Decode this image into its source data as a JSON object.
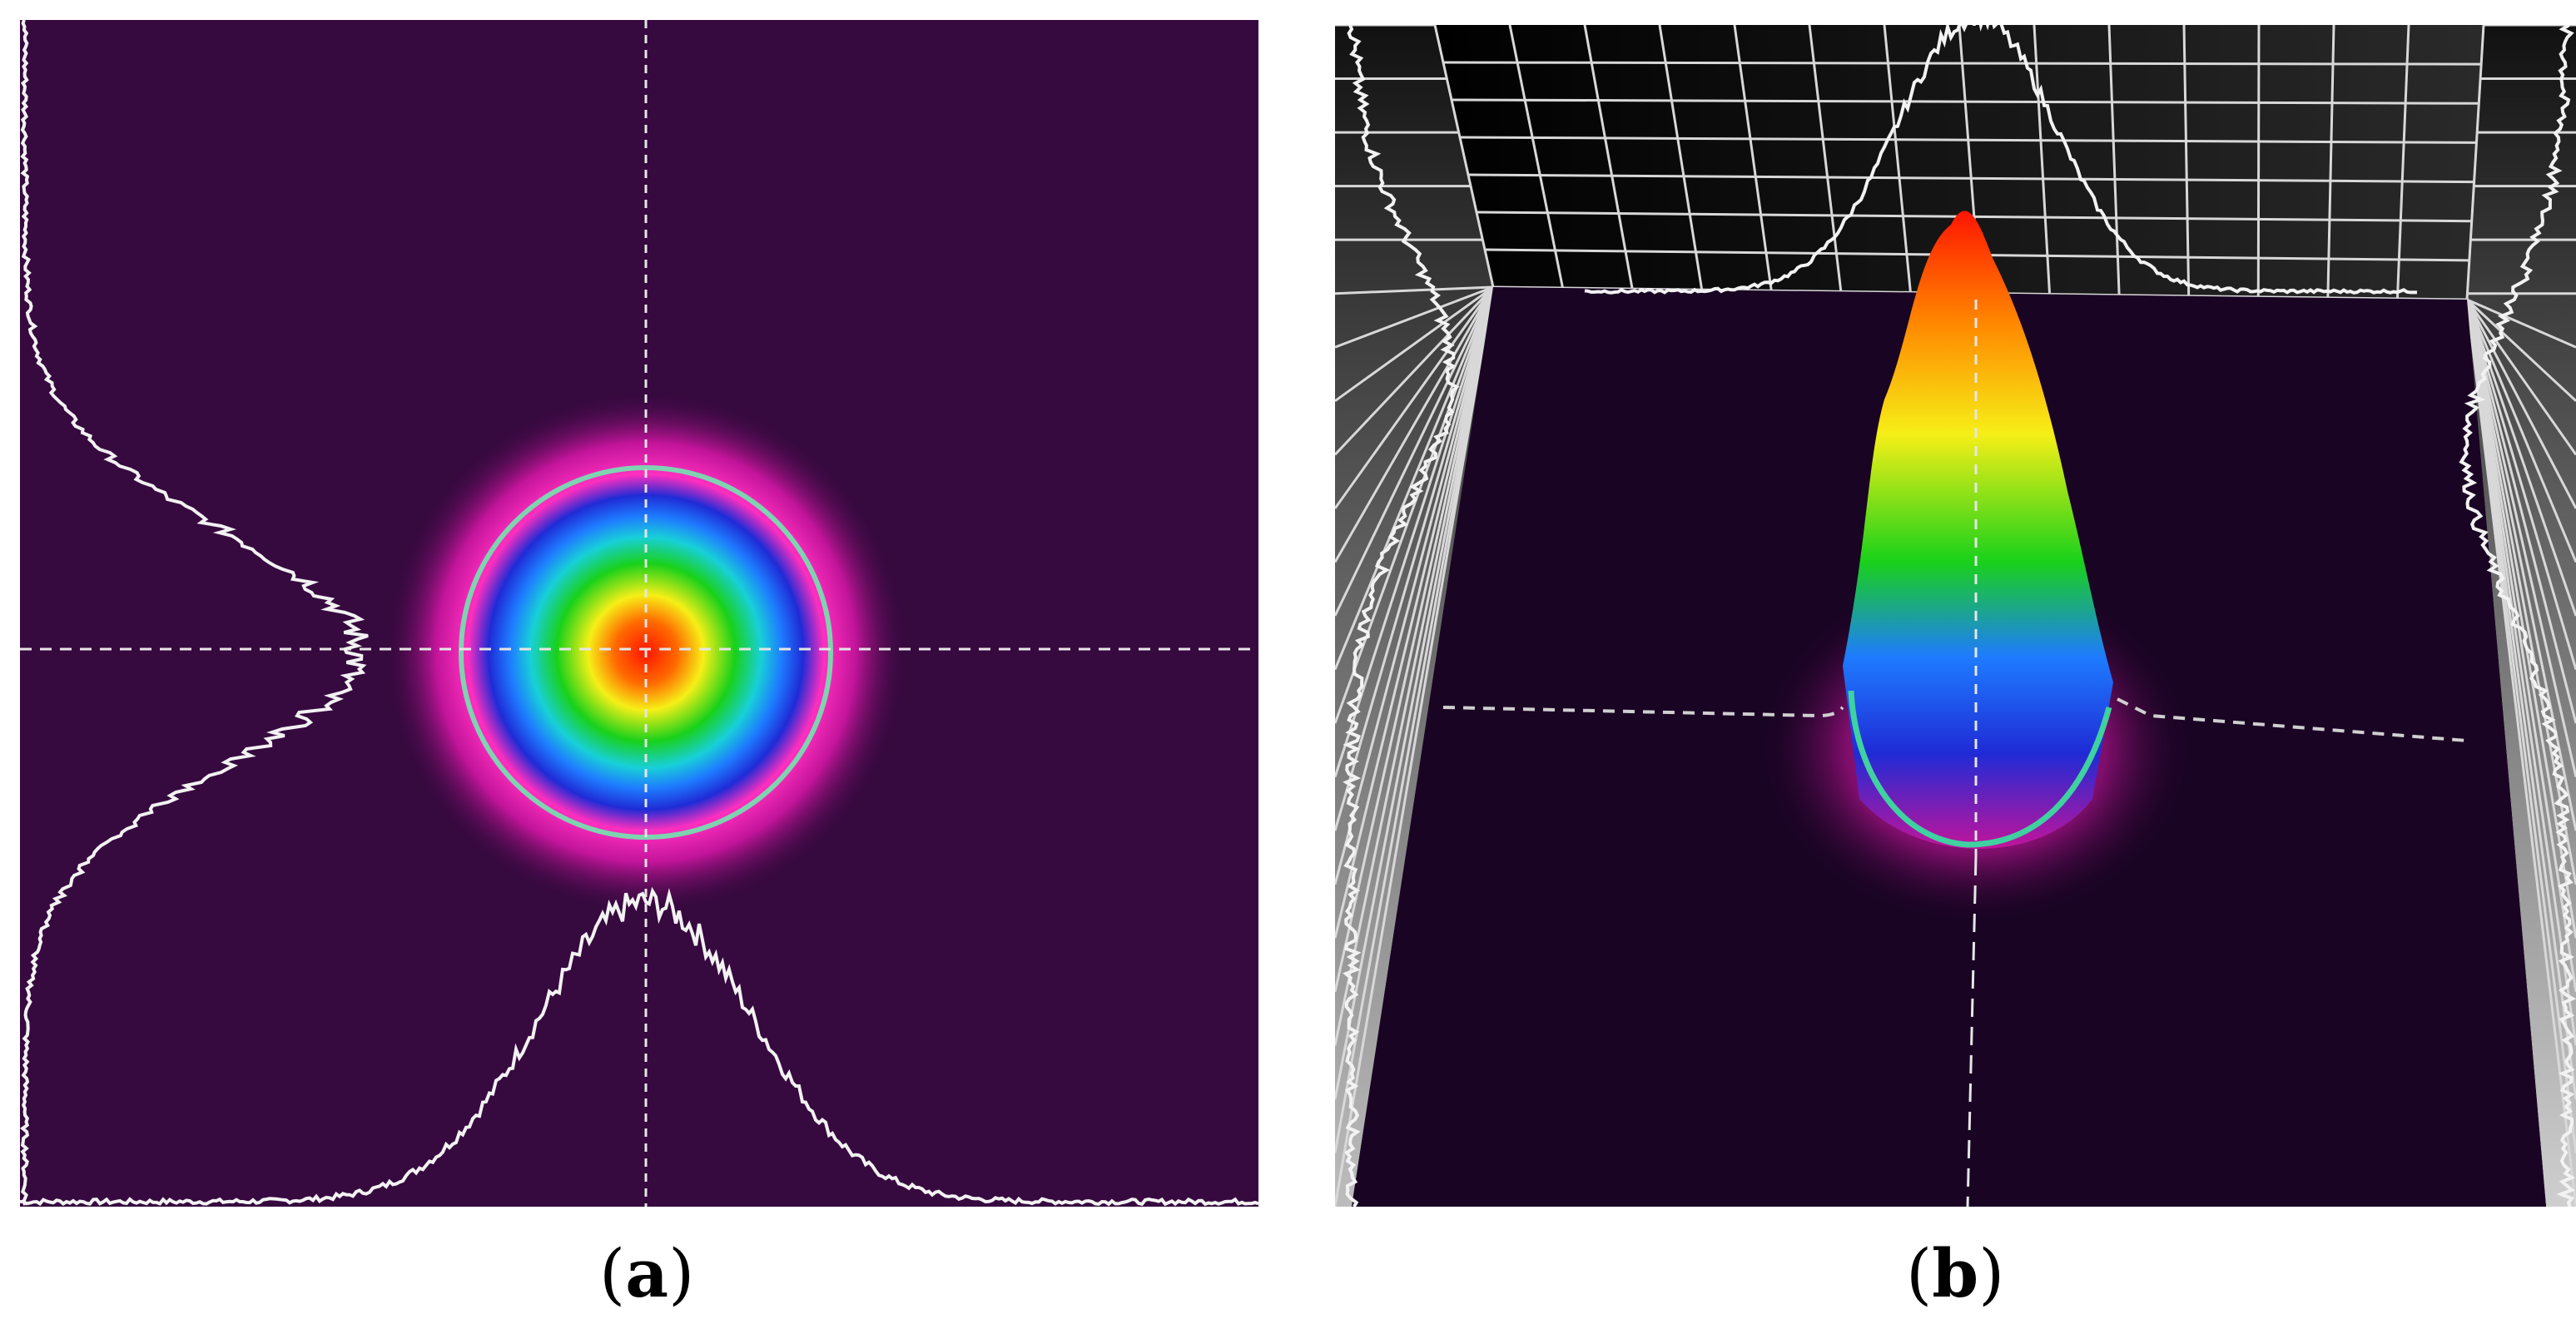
{
  "figure": {
    "panel_a_caption": "a",
    "panel_b_caption": "b"
  },
  "colors": {
    "background_a": "#36093f",
    "background_b": "#1a0424",
    "trace": "#f2f2f2",
    "fit_circle": "#7fd3b0",
    "colormap": [
      "#36093f",
      "#c2149a",
      "#ff2fbf",
      "#1f2bd6",
      "#1e7bff",
      "#18d0d8",
      "#19d11a",
      "#f6ef17",
      "#ff8a00",
      "#ff1500"
    ]
  }
}
